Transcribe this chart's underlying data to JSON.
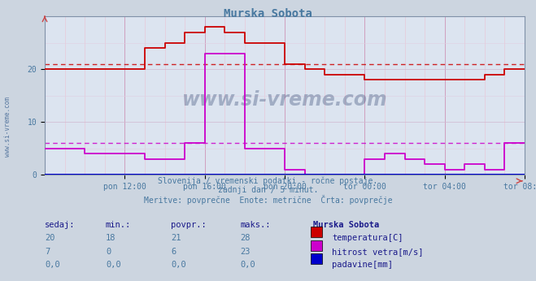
{
  "title": "Murska Sobota",
  "background_color": "#ccd5e0",
  "plot_bg_color": "#dce4f0",
  "grid_color_v": "#c8b4c8",
  "grid_color_h": "#c8b4c8",
  "subtitle_lines": [
    "Slovenija / vremenski podatki - ročne postaje.",
    "zadnji dan / 5 minut.",
    "Meritve: povprečne  Enote: metrične  Črta: povprečje"
  ],
  "tick_color": "#4878a0",
  "title_color": "#4878a0",
  "watermark_text": "www.si-vreme.com",
  "watermark_color": "#1a3060",
  "left_watermark": "www.si-vreme.com",
  "ylim": [
    0,
    30
  ],
  "yticks": [
    0,
    10,
    20
  ],
  "x_labels": [
    "pon 12:00",
    "pon 16:00",
    "pon 20:00",
    "tor 00:00",
    "tor 04:00",
    "tor 08:00"
  ],
  "x_positions": [
    48,
    96,
    144,
    192,
    240,
    288
  ],
  "total_points": 288,
  "temp_color": "#cc0000",
  "wind_color": "#cc00cc",
  "rain_color": "#0000cc",
  "temp_avg": 21,
  "wind_avg": 6,
  "legend_headers": [
    "sedaj:",
    "min.:",
    "povpr.:",
    "maks.:",
    "Murska Sobota"
  ],
  "legend_rows": [
    [
      "20",
      "18",
      "21",
      "28",
      "temperatura[C]"
    ],
    [
      "7",
      "0",
      "6",
      "23",
      "hitrost vetra[m/s]"
    ],
    [
      "0,0",
      "0,0",
      "0,0",
      "0,0",
      "padavine[mm]"
    ]
  ],
  "legend_colors": [
    "#cc0000",
    "#cc00cc",
    "#0000cc"
  ]
}
